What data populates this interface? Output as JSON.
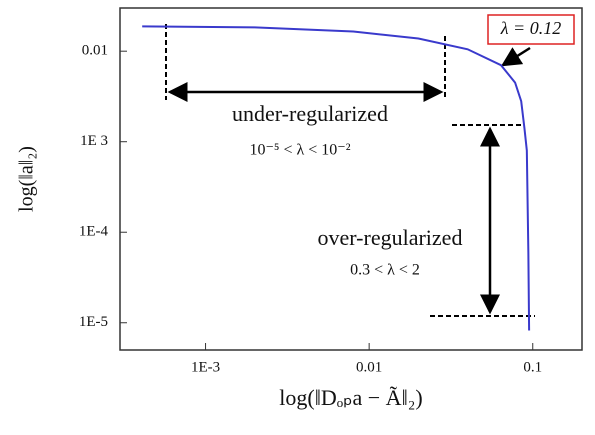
{
  "chart_data": {
    "type": "line",
    "xlabel": "log(‖Dₒₚa − Ã‖₂)",
    "ylabel": "log(‖a‖₂)",
    "xscale": "log",
    "yscale": "log",
    "xlim": [
      0.0003,
      0.2
    ],
    "ylim": [
      5e-06,
      0.03
    ],
    "xticks": [
      {
        "value": 0.001,
        "label": "1E-3"
      },
      0.01,
      0.1
    ],
    "yticks": [
      {
        "value": 1e-05,
        "label": "1E-5"
      },
      {
        "value": 0.0001,
        "label": "1E-4"
      },
      {
        "value": 0.001,
        "label": "1E 3"
      },
      0.01
    ],
    "grid": false,
    "series": [
      {
        "color": "#3a3acc",
        "x": [
          0.00041,
          0.002,
          0.008,
          0.02,
          0.04,
          0.064,
          0.078,
          0.085,
          0.089,
          0.092,
          0.094,
          0.095
        ],
        "values": [
          0.0188,
          0.0183,
          0.0165,
          0.0138,
          0.0105,
          0.007,
          0.0045,
          0.0028,
          0.0014,
          0.0008,
          6e-05,
          8.2e-06
        ]
      }
    ],
    "annotations": [
      "λ = 0.12",
      "under-regularized",
      "10⁻⁵ < λ < 10⁻²",
      "over-regularized",
      "0.3 < λ < 2"
    ]
  }
}
